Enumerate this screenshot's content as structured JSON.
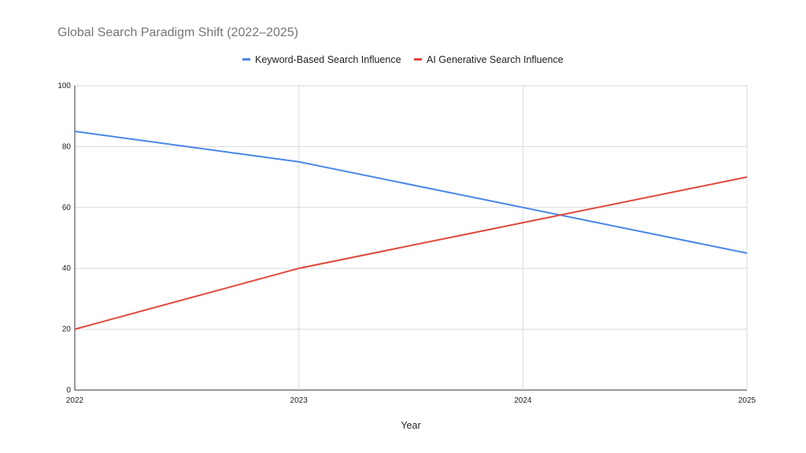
{
  "chart_data": {
    "type": "line",
    "title": "Global Search Paradigm Shift (2022–2025)",
    "xlabel": "Year",
    "ylabel": "",
    "categories": [
      "2022",
      "2023",
      "2024",
      "2025"
    ],
    "series": [
      {
        "name": "Keyword-Based Search Influence",
        "values": [
          85,
          75,
          60,
          45
        ],
        "color": "#4a86e8"
      },
      {
        "name": "AI Generative Search Influence",
        "values": [
          20,
          40,
          55,
          70
        ],
        "color": "#e0483b"
      }
    ],
    "ylim": [
      0,
      100
    ],
    "yticks": [
      "0",
      "20",
      "40",
      "60",
      "80",
      "100"
    ],
    "grid": true,
    "legend_position": "top"
  }
}
